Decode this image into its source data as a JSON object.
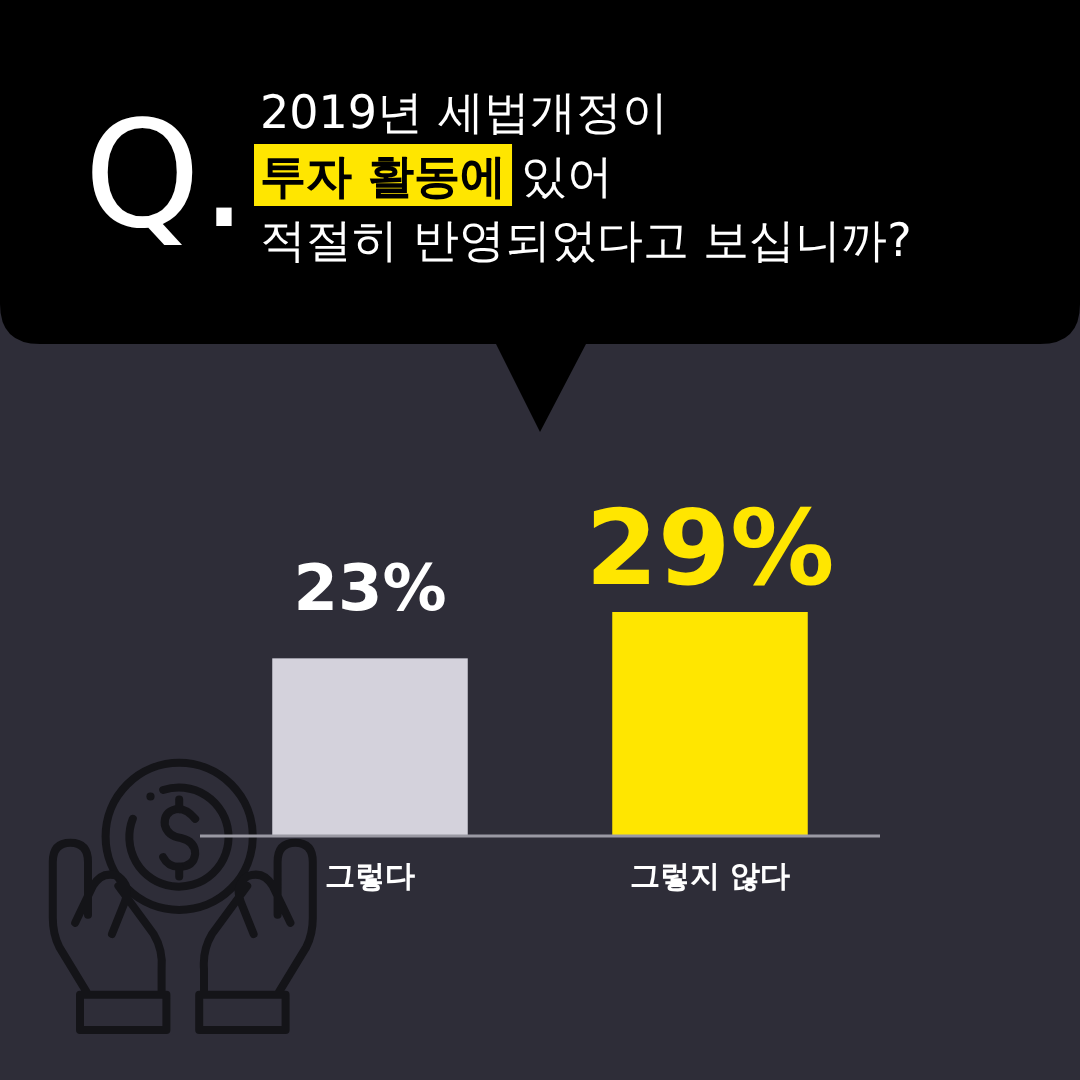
{
  "chart_data": {
    "type": "bar",
    "title": "Q.",
    "subtitle": "2019년 세법개정이\n**투자 활동에** 있어\n적절히 반영되었다고 보십니까?",
    "categories": [
      "그렇다",
      "그렇지 않다"
    ],
    "values": [
      23,
      29
    ],
    "colors": [
      "#d4d2dc",
      "#ffe600"
    ],
    "value_labels": [
      "23%",
      "29%"
    ]
  }
}
